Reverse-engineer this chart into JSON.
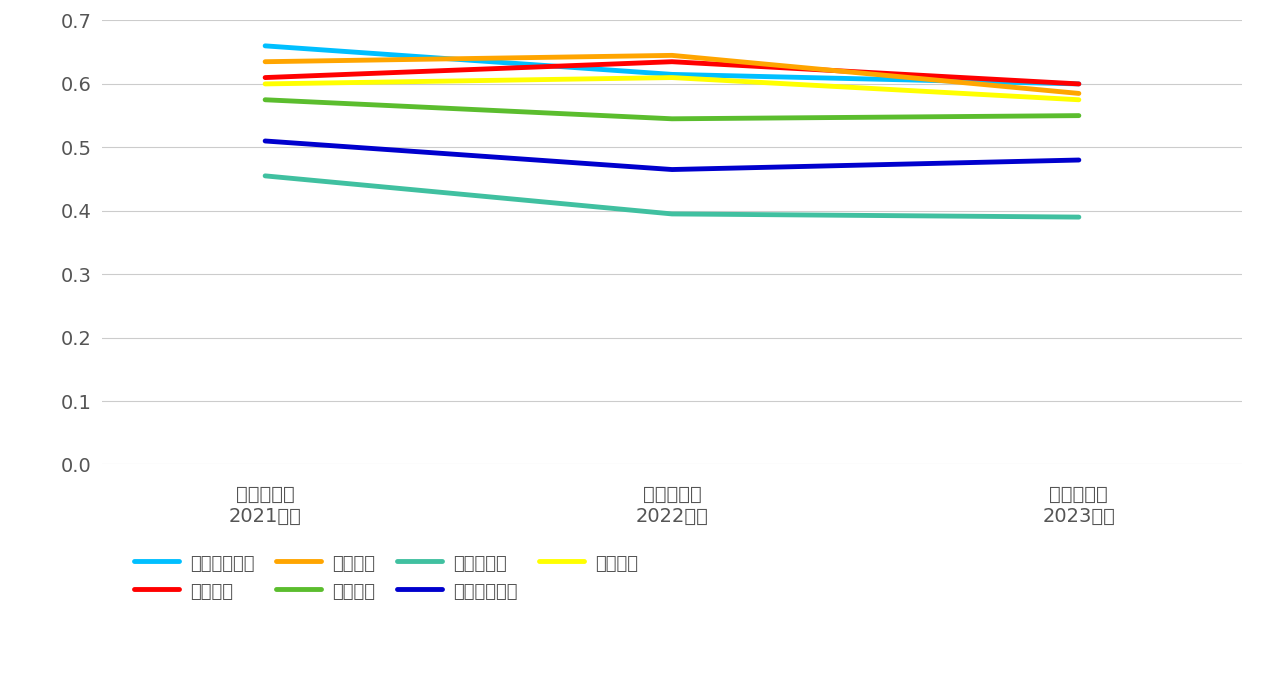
{
  "x_labels": [
    "销售毛利率\n2021财年",
    "销售毛利率\n2022财年",
    "销售毛利率\n2023财年"
  ],
  "x_positions": [
    0,
    1,
    2
  ],
  "series": [
    {
      "name": "中国新华教育",
      "color": "#00BFFF",
      "values": [
        0.66,
        0.615,
        0.6
      ]
    },
    {
      "name": "中国春来",
      "color": "#FF0000",
      "values": [
        0.61,
        0.635,
        0.6
      ]
    },
    {
      "name": "中国科培",
      "color": "#FFA500",
      "values": [
        0.635,
        0.645,
        0.585
      ]
    },
    {
      "name": "民生教育",
      "color": "#5BBD2E",
      "values": [
        0.575,
        0.545,
        0.55
      ]
    },
    {
      "name": "新高教集团",
      "color": "#40C0A0",
      "values": [
        0.455,
        0.395,
        0.39
      ]
    },
    {
      "name": "希教国际控股",
      "color": "#0000CD",
      "values": [
        0.51,
        0.465,
        0.48
      ]
    },
    {
      "name": "中教控股",
      "color": "#FFFF00",
      "values": [
        0.6,
        0.61,
        0.575
      ]
    }
  ],
  "legend_order": [
    0,
    1,
    2,
    3,
    4,
    5,
    6
  ],
  "ylim": [
    0.0,
    0.7
  ],
  "yticks": [
    0.0,
    0.1,
    0.2,
    0.3,
    0.4,
    0.5,
    0.6,
    0.7
  ],
  "background_color": "#FFFFFF",
  "linewidth": 3.5,
  "legend_fontsize": 13,
  "tick_fontsize": 14,
  "label_color": "#555555",
  "grid_color": "#CCCCCC",
  "figsize": [
    12.8,
    6.83
  ]
}
